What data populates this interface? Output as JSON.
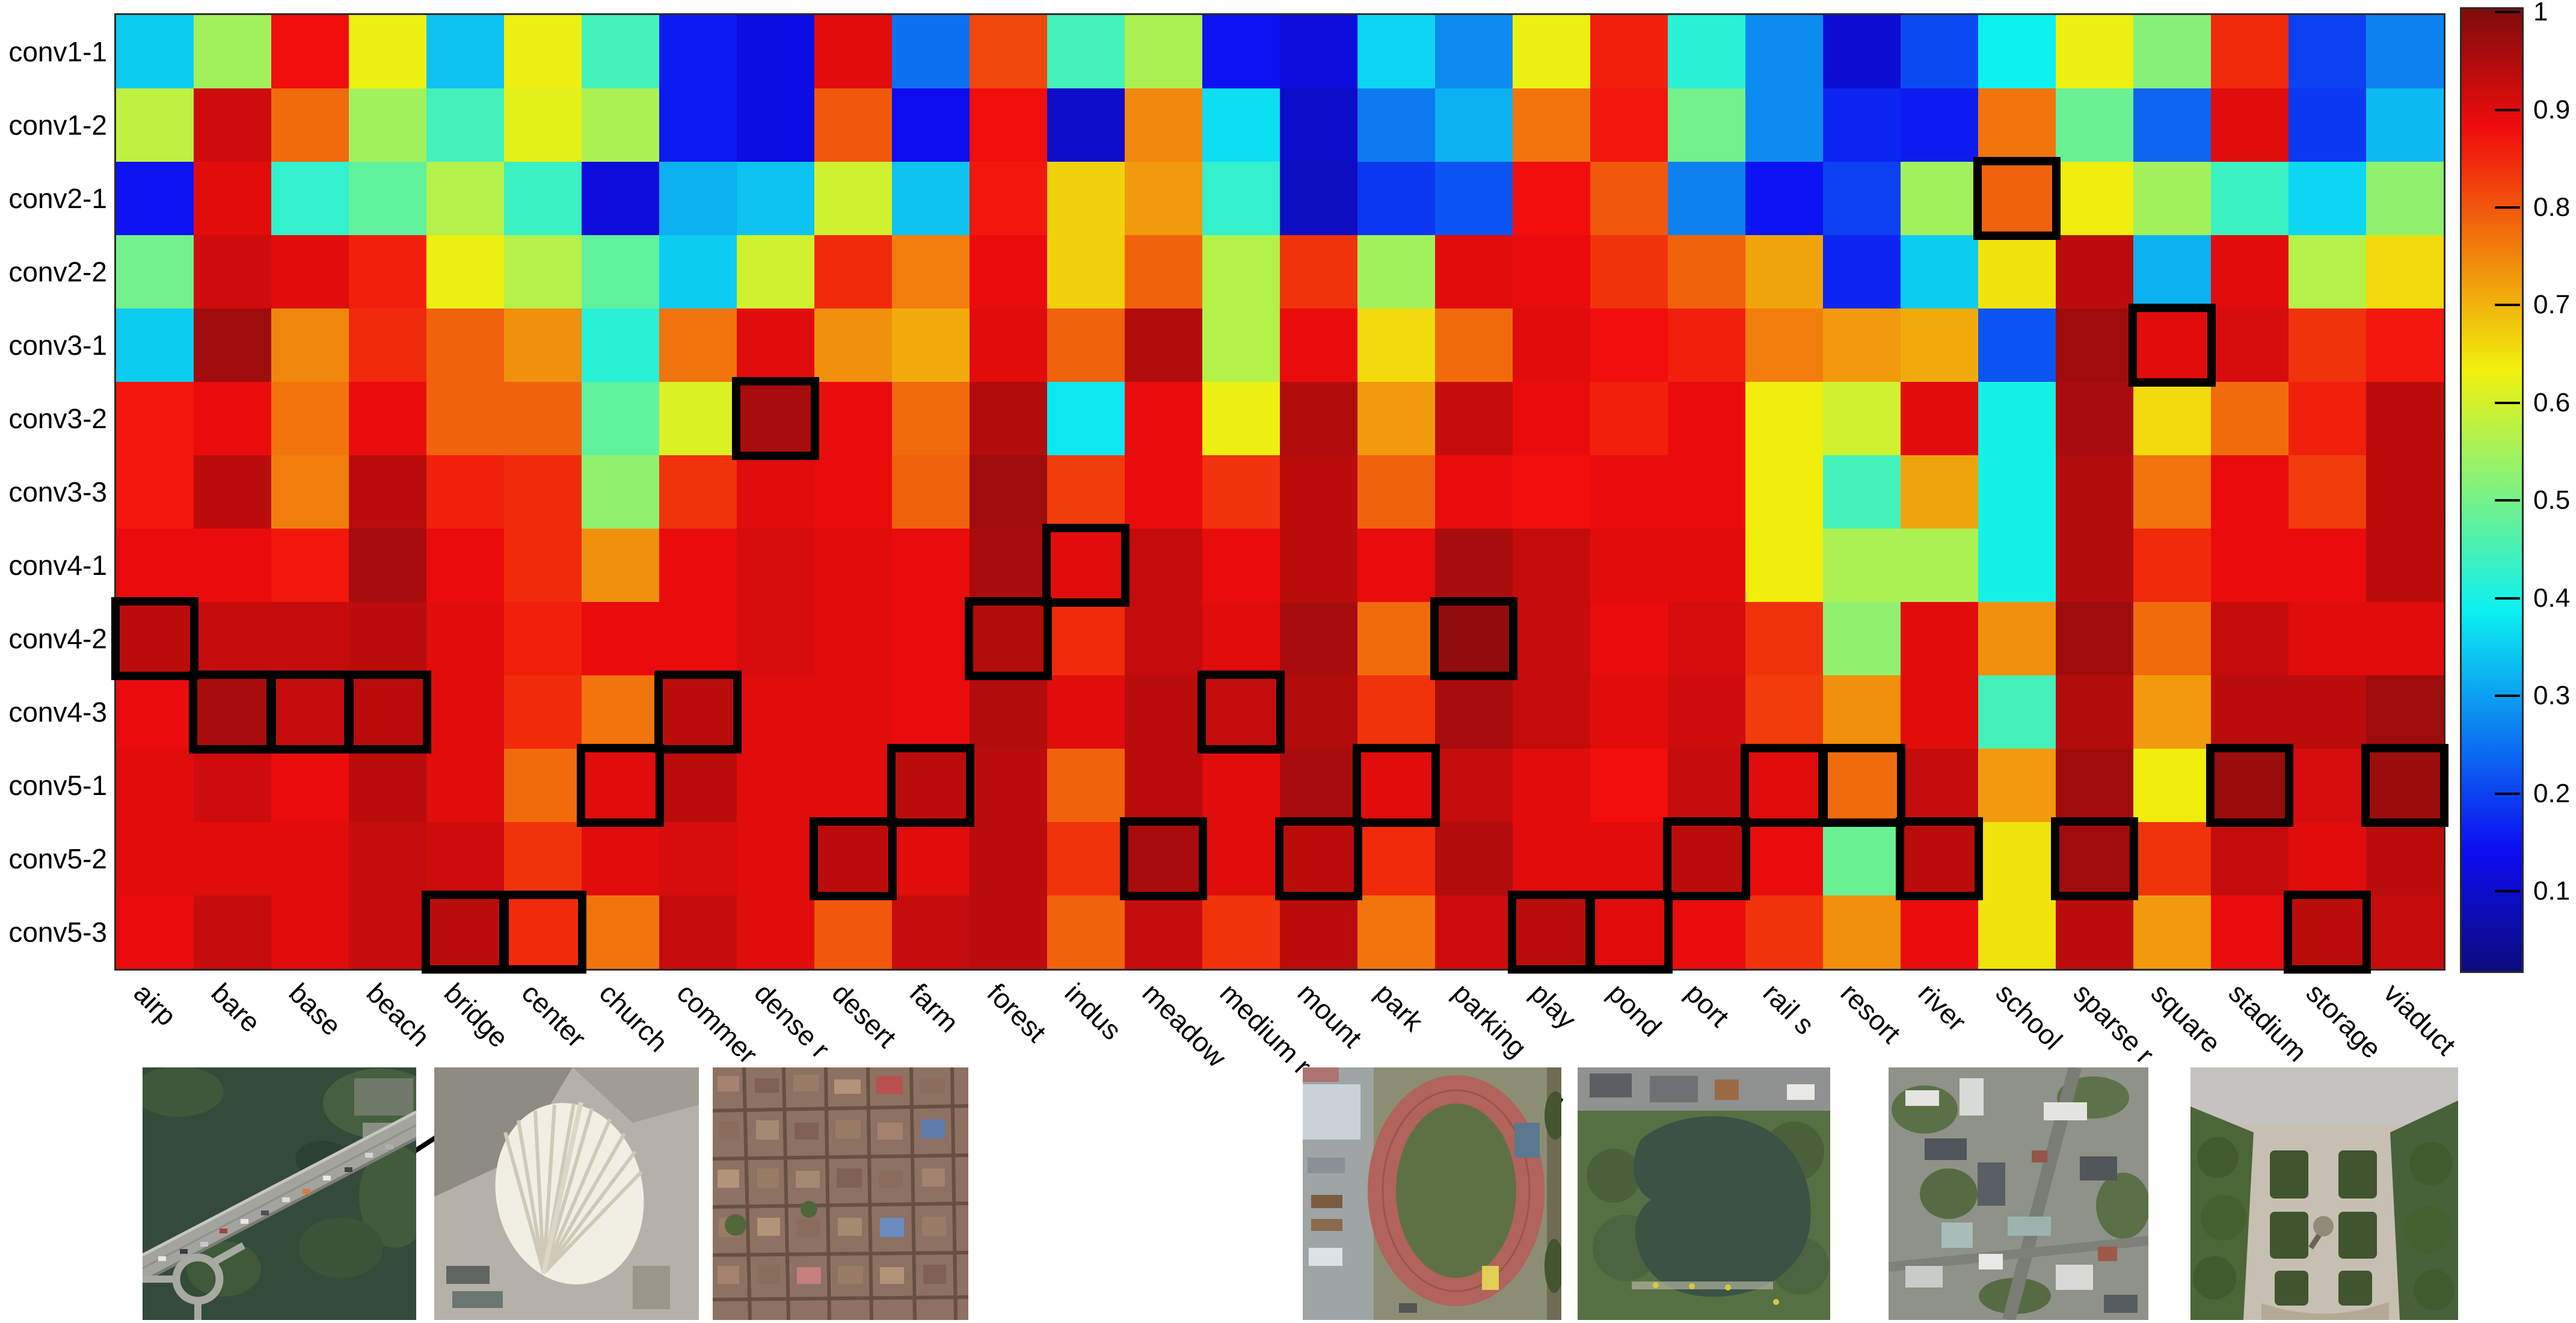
{
  "chart_data": {
    "type": "heatmap",
    "title": "",
    "xlabel": "",
    "ylabel": "",
    "grid": false,
    "colormap": "jet",
    "legend_position": "right",
    "color_range": [
      0.02,
      1.005
    ],
    "rows": [
      "conv1-1",
      "conv1-2",
      "conv2-1",
      "conv2-2",
      "conv3-1",
      "conv3-2",
      "conv3-3",
      "conv4-1",
      "conv4-2",
      "conv4-3",
      "conv5-1",
      "conv5-2",
      "conv5-3"
    ],
    "columns": [
      "airp",
      "bare",
      "base",
      "beach",
      "bridge",
      "center",
      "church",
      "commer",
      "dense r",
      "desert",
      "farm",
      "forest",
      "indus",
      "meadow",
      "medium r",
      "mount",
      "park",
      "parking",
      "play",
      "pond",
      "port",
      "rail s",
      "resort",
      "river",
      "school",
      "sparse r",
      "square",
      "stadium",
      "storage",
      "viaduct"
    ],
    "values": [
      [
        0.35,
        0.55,
        0.88,
        0.63,
        0.34,
        0.63,
        0.45,
        0.16,
        0.13,
        0.9,
        0.25,
        0.82,
        0.45,
        0.56,
        0.15,
        0.12,
        0.36,
        0.28,
        0.63,
        0.86,
        0.42,
        0.28,
        0.11,
        0.21,
        0.39,
        0.63,
        0.52,
        0.85,
        0.2,
        0.27
      ],
      [
        0.58,
        0.92,
        0.78,
        0.55,
        0.45,
        0.62,
        0.56,
        0.16,
        0.13,
        0.8,
        0.14,
        0.88,
        0.1,
        0.75,
        0.37,
        0.1,
        0.26,
        0.32,
        0.77,
        0.87,
        0.5,
        0.28,
        0.17,
        0.16,
        0.77,
        0.49,
        0.24,
        0.9,
        0.19,
        0.33
      ],
      [
        0.15,
        0.9,
        0.43,
        0.48,
        0.57,
        0.44,
        0.12,
        0.32,
        0.34,
        0.6,
        0.34,
        0.87,
        0.67,
        0.73,
        0.43,
        0.09,
        0.19,
        0.22,
        0.88,
        0.8,
        0.27,
        0.15,
        0.2,
        0.55,
        0.79,
        0.64,
        0.55,
        0.44,
        0.36,
        0.53
      ],
      [
        0.5,
        0.92,
        0.9,
        0.86,
        0.63,
        0.57,
        0.48,
        0.35,
        0.6,
        0.85,
        0.76,
        0.89,
        0.67,
        0.79,
        0.57,
        0.84,
        0.55,
        0.9,
        0.89,
        0.84,
        0.79,
        0.72,
        0.17,
        0.35,
        0.65,
        0.94,
        0.32,
        0.9,
        0.57,
        0.66
      ],
      [
        0.35,
        0.97,
        0.75,
        0.85,
        0.79,
        0.74,
        0.42,
        0.77,
        0.9,
        0.74,
        0.71,
        0.9,
        0.79,
        0.95,
        0.57,
        0.89,
        0.66,
        0.78,
        0.9,
        0.88,
        0.86,
        0.76,
        0.73,
        0.71,
        0.22,
        0.97,
        0.9,
        0.91,
        0.84,
        0.87
      ],
      [
        0.87,
        0.89,
        0.77,
        0.89,
        0.79,
        0.79,
        0.48,
        0.61,
        0.96,
        0.89,
        0.78,
        0.95,
        0.38,
        0.89,
        0.63,
        0.95,
        0.73,
        0.93,
        0.89,
        0.86,
        0.89,
        0.64,
        0.6,
        0.9,
        0.4,
        0.96,
        0.66,
        0.78,
        0.86,
        0.94
      ],
      [
        0.87,
        0.94,
        0.76,
        0.94,
        0.86,
        0.85,
        0.53,
        0.84,
        0.9,
        0.89,
        0.79,
        0.97,
        0.83,
        0.89,
        0.84,
        0.94,
        0.79,
        0.89,
        0.88,
        0.89,
        0.89,
        0.64,
        0.45,
        0.72,
        0.4,
        0.95,
        0.77,
        0.89,
        0.83,
        0.94
      ],
      [
        0.89,
        0.89,
        0.87,
        0.96,
        0.89,
        0.85,
        0.74,
        0.89,
        0.91,
        0.9,
        0.89,
        0.96,
        0.9,
        0.93,
        0.89,
        0.94,
        0.89,
        0.96,
        0.93,
        0.9,
        0.9,
        0.64,
        0.56,
        0.56,
        0.4,
        0.95,
        0.85,
        0.89,
        0.89,
        0.94
      ],
      [
        0.94,
        0.93,
        0.93,
        0.94,
        0.9,
        0.86,
        0.89,
        0.89,
        0.91,
        0.9,
        0.89,
        0.95,
        0.85,
        0.93,
        0.9,
        0.96,
        0.78,
        0.985,
        0.93,
        0.89,
        0.91,
        0.84,
        0.53,
        0.9,
        0.74,
        0.97,
        0.78,
        0.93,
        0.9,
        0.9
      ],
      [
        0.89,
        0.96,
        0.93,
        0.94,
        0.9,
        0.85,
        0.77,
        0.94,
        0.9,
        0.9,
        0.89,
        0.95,
        0.9,
        0.94,
        0.93,
        0.95,
        0.84,
        0.96,
        0.93,
        0.9,
        0.92,
        0.83,
        0.74,
        0.9,
        0.45,
        0.95,
        0.73,
        0.94,
        0.94,
        0.97
      ],
      [
        0.9,
        0.92,
        0.89,
        0.94,
        0.9,
        0.78,
        0.9,
        0.94,
        0.9,
        0.9,
        0.94,
        0.94,
        0.79,
        0.94,
        0.9,
        0.96,
        0.9,
        0.93,
        0.9,
        0.88,
        0.93,
        0.9,
        0.78,
        0.93,
        0.73,
        0.97,
        0.64,
        0.975,
        0.91,
        0.975
      ],
      [
        0.9,
        0.9,
        0.9,
        0.93,
        0.92,
        0.84,
        0.9,
        0.91,
        0.9,
        0.94,
        0.9,
        0.94,
        0.84,
        0.96,
        0.9,
        0.94,
        0.85,
        0.95,
        0.9,
        0.9,
        0.94,
        0.89,
        0.49,
        0.94,
        0.65,
        0.97,
        0.84,
        0.93,
        0.9,
        0.94
      ],
      [
        0.89,
        0.93,
        0.9,
        0.93,
        0.94,
        0.85,
        0.77,
        0.93,
        0.9,
        0.8,
        0.93,
        0.94,
        0.79,
        0.93,
        0.84,
        0.94,
        0.77,
        0.92,
        0.94,
        0.9,
        0.89,
        0.84,
        0.74,
        0.89,
        0.65,
        0.94,
        0.73,
        0.89,
        0.94,
        0.93
      ]
    ],
    "highlighted_cells": [
      [
        2,
        24
      ],
      [
        4,
        26
      ],
      [
        5,
        8
      ],
      [
        7,
        12
      ],
      [
        8,
        0
      ],
      [
        8,
        11
      ],
      [
        8,
        17
      ],
      [
        9,
        1
      ],
      [
        9,
        2
      ],
      [
        9,
        3
      ],
      [
        9,
        7
      ],
      [
        9,
        14
      ],
      [
        10,
        6
      ],
      [
        10,
        10
      ],
      [
        10,
        16
      ],
      [
        10,
        21
      ],
      [
        10,
        22
      ],
      [
        10,
        27
      ],
      [
        10,
        29
      ],
      [
        11,
        9
      ],
      [
        11,
        13
      ],
      [
        11,
        15
      ],
      [
        11,
        20
      ],
      [
        11,
        23
      ],
      [
        11,
        25
      ],
      [
        12,
        4
      ],
      [
        12,
        5
      ],
      [
        12,
        18
      ],
      [
        12,
        19
      ],
      [
        12,
        28
      ]
    ],
    "colorbar_ticks": [
      "1",
      "0.9",
      "0.8",
      "0.7",
      "0.6",
      "0.5",
      "0.4",
      "0.3",
      "0.2",
      "0.1"
    ],
    "colorbar_tick_values": [
      1,
      0.9,
      0.8,
      0.7,
      0.6,
      0.5,
      0.4,
      0.3,
      0.2,
      0.1
    ]
  },
  "examples": {
    "items": [
      {
        "category": "bridge"
      },
      {
        "category": "center"
      },
      {
        "category": "dense r"
      },
      {
        "category": "play"
      },
      {
        "category": "pond"
      },
      {
        "category": "school"
      },
      {
        "category": "square"
      }
    ]
  }
}
